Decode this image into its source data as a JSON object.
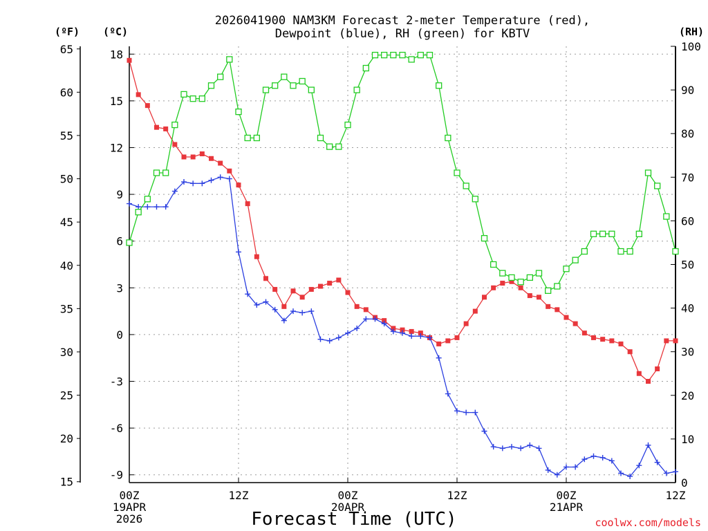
{
  "chart_data": {
    "type": "line",
    "title_line1": "2026041900 NAM3KM Forecast 2-meter Temperature (red),",
    "title_line2": "Dewpoint (blue), RH (green) for KBTV",
    "xlabel": "Forecast Time (UTC)",
    "credit": "coolwx.com/models",
    "units": {
      "fahrenheit": "(ºF)",
      "celsius": "(ºC)",
      "rh": "(RH)"
    },
    "colors": {
      "temperature": "#e8373c",
      "dewpoint": "#2b3fe0",
      "rh": "#22cc22"
    },
    "x_hours_range": [
      0,
      60
    ],
    "ylim_celsius": [
      -9.5,
      18.5
    ],
    "ylim_fahrenheit": [
      14.9,
      65.3
    ],
    "ylim_rh": [
      0,
      100
    ],
    "yticks_celsius": [
      18,
      15,
      12,
      9,
      6,
      3,
      0,
      -3,
      -6,
      -9
    ],
    "yticks_fahrenheit": [
      65,
      60,
      55,
      50,
      45,
      40,
      35,
      30,
      25,
      20,
      15
    ],
    "yticks_rh": [
      100,
      90,
      80,
      70,
      60,
      50,
      40,
      30,
      20,
      10,
      0
    ],
    "xticks": [
      {
        "hour": 0,
        "line1": "00Z",
        "line2": "19APR",
        "line3": "2026"
      },
      {
        "hour": 12,
        "line1": "12Z",
        "line2": "",
        "line3": ""
      },
      {
        "hour": 24,
        "line1": "00Z",
        "line2": "20APR",
        "line3": ""
      },
      {
        "hour": 36,
        "line1": "12Z",
        "line2": "",
        "line3": ""
      },
      {
        "hour": 48,
        "line1": "00Z",
        "line2": "21APR",
        "line3": ""
      },
      {
        "hour": 60,
        "line1": "12Z",
        "line2": "",
        "line3": ""
      }
    ],
    "x_hours": [
      0,
      1,
      2,
      3,
      4,
      5,
      6,
      7,
      8,
      9,
      10,
      11,
      12,
      13,
      14,
      15,
      16,
      17,
      18,
      19,
      20,
      21,
      22,
      23,
      24,
      25,
      26,
      27,
      28,
      29,
      30,
      31,
      32,
      33,
      34,
      35,
      36,
      37,
      38,
      39,
      40,
      41,
      42,
      43,
      44,
      45,
      46,
      47,
      48,
      49,
      50,
      51,
      52,
      53,
      54,
      55,
      56,
      57,
      58,
      59,
      60
    ],
    "series": [
      {
        "name": "Temperature",
        "unit": "celsius",
        "values": [
          17.6,
          15.4,
          14.7,
          13.3,
          13.2,
          12.2,
          11.4,
          11.4,
          11.6,
          11.3,
          11.0,
          10.5,
          9.6,
          8.4,
          5.0,
          3.6,
          2.9,
          1.8,
          2.8,
          2.4,
          2.9,
          3.1,
          3.3,
          3.5,
          2.7,
          1.8,
          1.6,
          1.1,
          0.9,
          0.4,
          0.3,
          0.2,
          0.1,
          -0.2,
          -0.6,
          -0.4,
          -0.2,
          0.7,
          1.5,
          2.4,
          3.0,
          3.3,
          3.4,
          3.0,
          2.5,
          2.4,
          1.8,
          1.6,
          1.1,
          0.7,
          0.1,
          -0.2,
          -0.3,
          -0.4,
          -0.6,
          -1.1,
          -2.5,
          -3.0,
          -2.2,
          -0.4,
          -0.4
        ]
      },
      {
        "name": "Dewpoint",
        "unit": "celsius",
        "values": [
          8.4,
          8.2,
          8.2,
          8.2,
          8.2,
          9.2,
          9.8,
          9.7,
          9.7,
          9.9,
          10.1,
          10.0,
          5.3,
          2.6,
          1.9,
          2.1,
          1.6,
          0.9,
          1.5,
          1.4,
          1.5,
          -0.3,
          -0.4,
          -0.2,
          0.1,
          0.4,
          1.0,
          1.0,
          0.7,
          0.2,
          0.1,
          -0.1,
          -0.1,
          -0.2,
          -1.5,
          -3.8,
          -4.9,
          -5.0,
          -5.0,
          -6.2,
          -7.2,
          -7.3,
          -7.2,
          -7.3,
          -7.1,
          -7.3,
          -8.7,
          -9.0,
          -8.5,
          -8.5,
          -8.0,
          -7.8,
          -7.9,
          -8.1,
          -8.9,
          -9.1,
          -8.4,
          -7.1,
          -8.2,
          -8.9,
          -8.8
        ]
      },
      {
        "name": "RH",
        "unit": "percent",
        "values": [
          55,
          62,
          65,
          71,
          71,
          82,
          89,
          88,
          88,
          91,
          93,
          97,
          85,
          79,
          79,
          90,
          91,
          93,
          91,
          92,
          90,
          79,
          77,
          77,
          82,
          90,
          95,
          98,
          98,
          98,
          98,
          97,
          98,
          98,
          91,
          79,
          71,
          68,
          65,
          56,
          50,
          48,
          47,
          46,
          47,
          48,
          44,
          45,
          49,
          51,
          53,
          57,
          57,
          57,
          53,
          53,
          57,
          71,
          68,
          61,
          53
        ]
      }
    ]
  }
}
